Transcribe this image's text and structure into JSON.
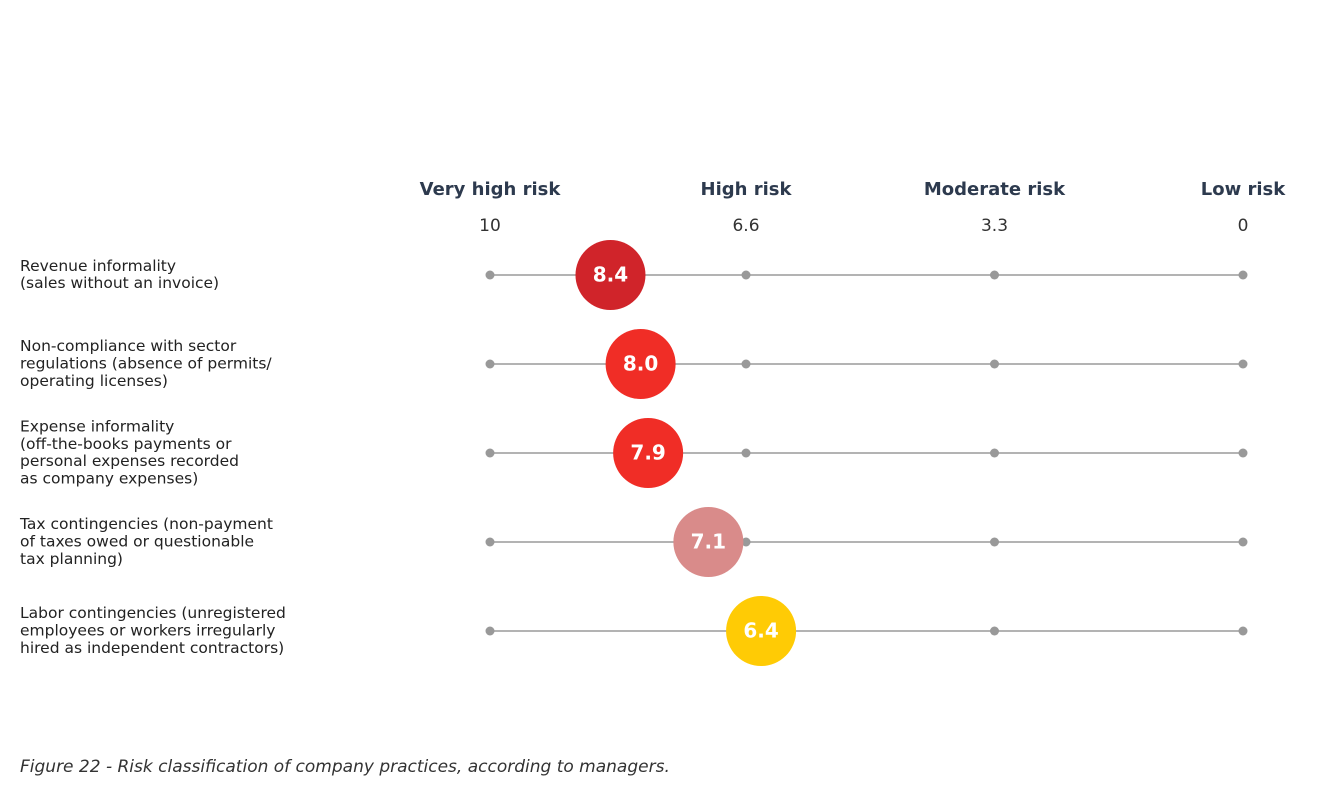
{
  "caption": "Figure 22 - Risk classification of company practices, according to managers.",
  "chart_data": {
    "type": "scatter",
    "axis": {
      "min": 0,
      "max": 10,
      "reversed": true,
      "ticks": [
        {
          "value": 10,
          "label": "10",
          "level": "Very high risk"
        },
        {
          "value": 6.6,
          "label": "6.6",
          "level": "High risk"
        },
        {
          "value": 3.3,
          "label": "3.3",
          "level": "Moderate risk"
        },
        {
          "value": 0,
          "label": "0",
          "level": "Low risk"
        }
      ]
    },
    "items": [
      {
        "label": [
          "Revenue informality",
          "(sales without an invoice)"
        ],
        "value": 8.4,
        "value_label": "8.4",
        "color": "#d0242a"
      },
      {
        "label": [
          "Non-compliance with sector",
          "regulations (absence of permits/",
          "operating licenses)"
        ],
        "value": 8.0,
        "value_label": "8.0",
        "color": "#f02d26"
      },
      {
        "label": [
          "Expense informality",
          "(off-the-books payments or",
          "personal expenses recorded",
          "as company expenses)"
        ],
        "value": 7.9,
        "value_label": "7.9",
        "color": "#f02d26"
      },
      {
        "label": [
          "Tax contingencies (non-payment",
          "of taxes owed or questionable",
          "tax planning)"
        ],
        "value": 7.1,
        "value_label": "7.1",
        "color": "#d98b8a"
      },
      {
        "label": [
          "Labor contingencies (unregistered",
          "employees or workers irregularly",
          "hired as independent contractors)"
        ],
        "value": 6.4,
        "value_label": "6.4",
        "color": "#ffcb05"
      }
    ],
    "line_color": "#b3b3b3",
    "tick_dot_color": "#999999"
  }
}
